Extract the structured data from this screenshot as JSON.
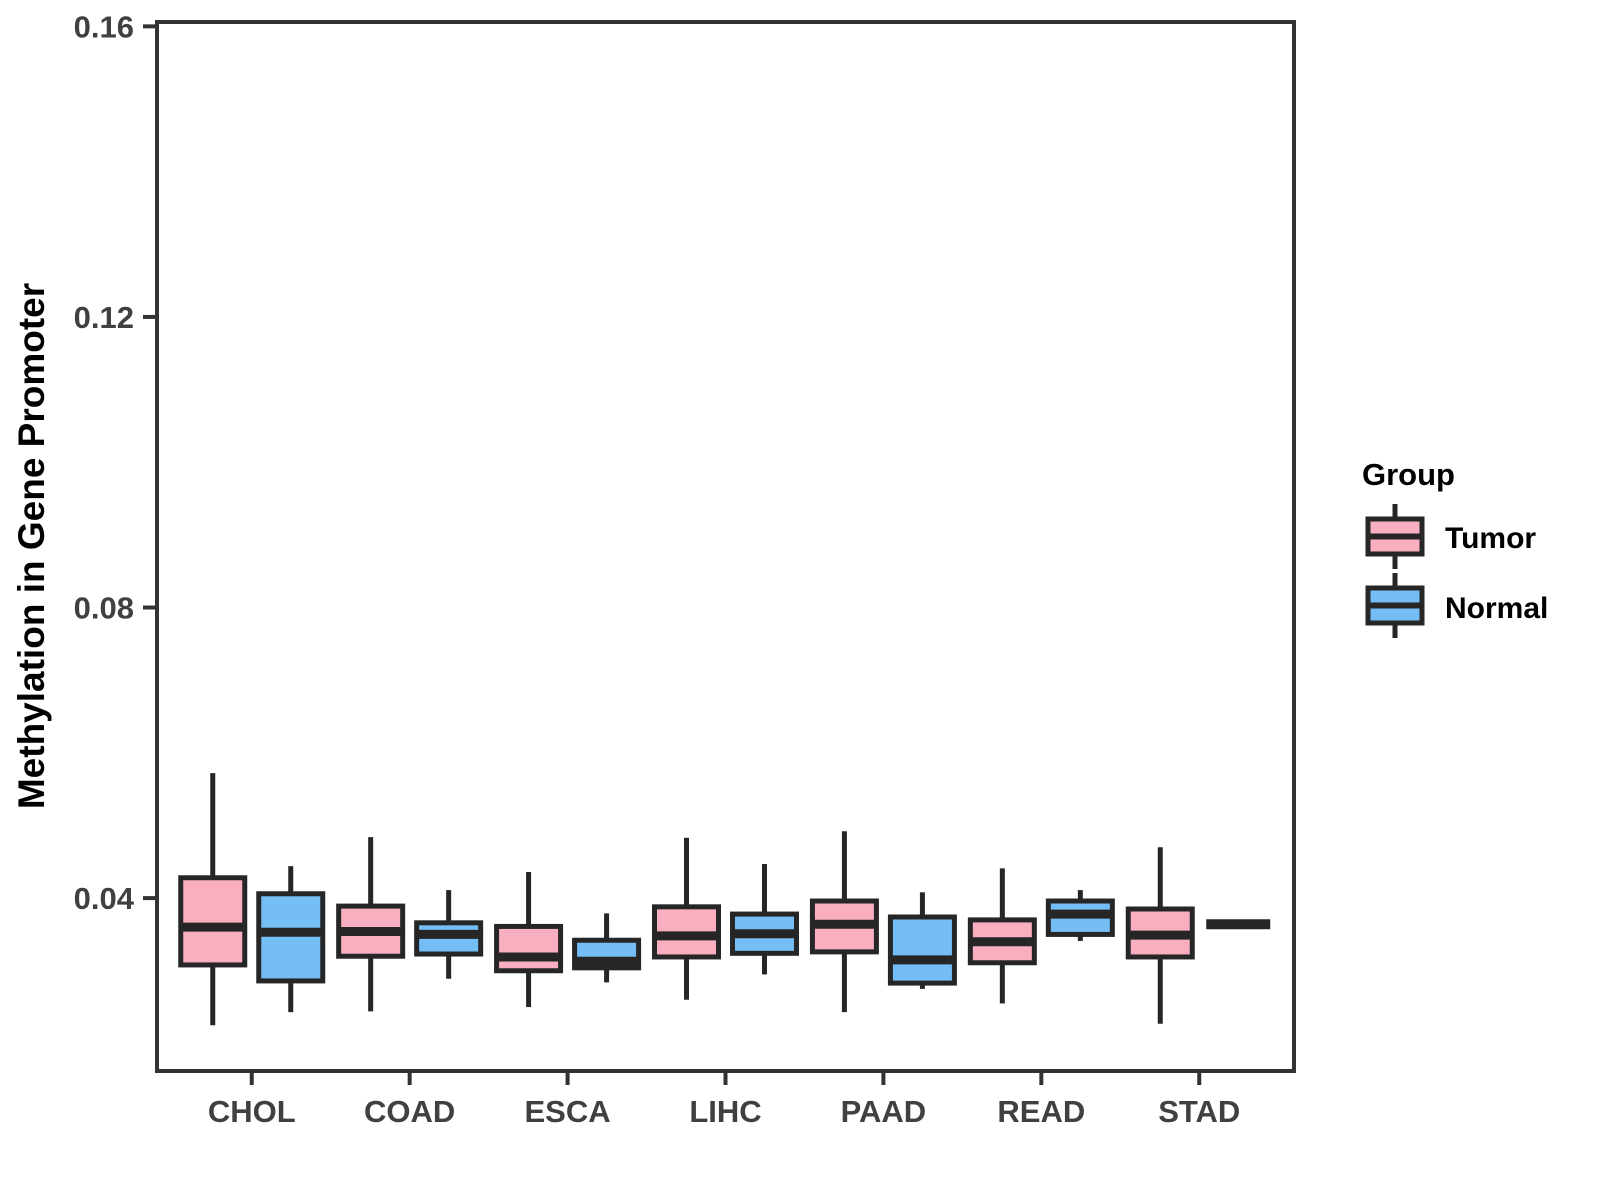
{
  "figure": {
    "background": "#FFFFFF"
  },
  "chart_data": {
    "type": "boxplot",
    "title": "",
    "xlabel": "",
    "ylabel": "Methylation in Gene Promoter",
    "categories": [
      "CHOL",
      "COAD",
      "ESCA",
      "LIHC",
      "PAAD",
      "READ",
      "STAD"
    ],
    "yticks": [
      0.04,
      0.08,
      0.12,
      0.16
    ],
    "ytick_labels": [
      "0.04",
      "0.08",
      "0.12",
      "0.16"
    ],
    "ylim": [
      0.0162,
      0.1606
    ],
    "grid": false,
    "legend": {
      "title": "Group",
      "position": "right",
      "entries": [
        {
          "label": "Tumor",
          "color": "#FAAFC1"
        },
        {
          "label": "Normal",
          "color": "#74BEF5"
        }
      ]
    },
    "style": {
      "box_stroke": "#262626",
      "median_color": "#262626",
      "axis_color": "#333333",
      "tick_label_color": "#404040"
    },
    "series": [
      {
        "name": "Tumor",
        "color": "#FAAFC1",
        "boxes": [
          {
            "category": "CHOL",
            "whisker_low": 0.0225,
            "q1": 0.0308,
            "median": 0.036,
            "q3": 0.0428,
            "whisker_high": 0.0572
          },
          {
            "category": "COAD",
            "whisker_low": 0.0244,
            "q1": 0.032,
            "median": 0.0354,
            "q3": 0.0389,
            "whisker_high": 0.0484
          },
          {
            "category": "ESCA",
            "whisker_low": 0.025,
            "q1": 0.03,
            "median": 0.0319,
            "q3": 0.0361,
            "whisker_high": 0.0436
          },
          {
            "category": "LIHC",
            "whisker_low": 0.026,
            "q1": 0.0319,
            "median": 0.0348,
            "q3": 0.0388,
            "whisker_high": 0.0483
          },
          {
            "category": "PAAD",
            "whisker_low": 0.0243,
            "q1": 0.0326,
            "median": 0.0364,
            "q3": 0.0396,
            "whisker_high": 0.0492
          },
          {
            "category": "READ",
            "whisker_low": 0.0255,
            "q1": 0.0311,
            "median": 0.034,
            "q3": 0.037,
            "whisker_high": 0.0441
          },
          {
            "category": "STAD",
            "whisker_low": 0.0227,
            "q1": 0.0319,
            "median": 0.0349,
            "q3": 0.0385,
            "whisker_high": 0.047
          }
        ]
      },
      {
        "name": "Normal",
        "color": "#74BEF5",
        "boxes": [
          {
            "category": "CHOL",
            "whisker_low": 0.0243,
            "q1": 0.0286,
            "median": 0.0353,
            "q3": 0.0406,
            "whisker_high": 0.0444
          },
          {
            "category": "COAD",
            "whisker_low": 0.0289,
            "q1": 0.0323,
            "median": 0.035,
            "q3": 0.0366,
            "whisker_high": 0.0411
          },
          {
            "category": "ESCA",
            "whisker_low": 0.0284,
            "q1": 0.0304,
            "median": 0.0313,
            "q3": 0.0342,
            "whisker_high": 0.0379
          },
          {
            "category": "LIHC",
            "whisker_low": 0.0295,
            "q1": 0.0324,
            "median": 0.0351,
            "q3": 0.0378,
            "whisker_high": 0.0447
          },
          {
            "category": "PAAD",
            "whisker_low": 0.0275,
            "q1": 0.0283,
            "median": 0.0315,
            "q3": 0.0374,
            "whisker_high": 0.0408
          },
          {
            "category": "READ",
            "whisker_low": 0.0341,
            "q1": 0.035,
            "median": 0.0378,
            "q3": 0.0396,
            "whisker_high": 0.0411
          },
          {
            "category": "STAD",
            "whisker_low": null,
            "q1": null,
            "median": 0.0364,
            "q3": null,
            "whisker_high": null
          }
        ]
      }
    ]
  }
}
